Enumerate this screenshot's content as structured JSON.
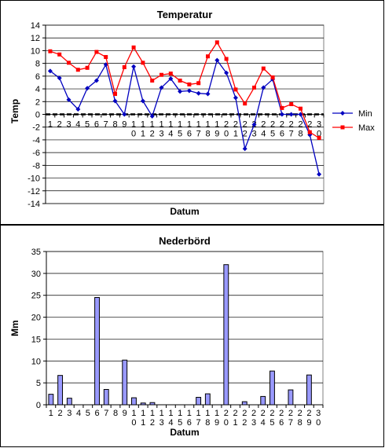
{
  "chart_data": [
    {
      "type": "line",
      "title": "Temperatur",
      "xlabel": "Datum",
      "ylabel": "Temp",
      "ylim": [
        -14,
        14
      ],
      "yticks": [
        14,
        12,
        10,
        8,
        6,
        4,
        2,
        0,
        -2,
        -4,
        -6,
        -8,
        -10,
        -12,
        -14
      ],
      "grid": true,
      "legend": "right",
      "categories": [
        "1",
        "2",
        "3",
        "4",
        "5",
        "6",
        "7",
        "8",
        "9",
        "10",
        "11",
        "12",
        "13",
        "14",
        "15",
        "16",
        "17",
        "18",
        "19",
        "20",
        "21",
        "22",
        "23",
        "24",
        "25",
        "26",
        "27",
        "28",
        "29",
        "30"
      ],
      "series": [
        {
          "name": "Min",
          "color": "#0000c0",
          "values": [
            6.8,
            5.7,
            2.3,
            0.8,
            4.1,
            5.3,
            7.8,
            2.1,
            0.0,
            7.5,
            2.1,
            -0.3,
            4.2,
            5.6,
            3.6,
            3.7,
            3.3,
            3.2,
            8.5,
            6.5,
            2.6,
            -5.4,
            -1.6,
            4.2,
            5.5,
            0.0,
            0.0,
            0.0,
            -3.2,
            -9.4
          ]
        },
        {
          "name": "Max",
          "color": "#ff0000",
          "values": [
            9.9,
            9.4,
            8.1,
            7.0,
            7.3,
            9.8,
            9.0,
            3.2,
            7.4,
            10.5,
            8.1,
            5.3,
            6.2,
            6.4,
            5.3,
            4.7,
            4.9,
            9.1,
            11.3,
            8.7,
            3.9,
            1.7,
            4.2,
            7.2,
            5.8,
            1.0,
            1.6,
            0.9,
            -2.8,
            -3.7
          ]
        }
      ]
    },
    {
      "type": "bar",
      "title": "Nederbörd",
      "xlabel": "Datum",
      "ylabel": "Mm",
      "ylim": [
        0,
        35
      ],
      "yticks": [
        35,
        30,
        25,
        20,
        15,
        10,
        5,
        0
      ],
      "grid": true,
      "bar_color": "#9999ff",
      "categories": [
        "1",
        "2",
        "3",
        "4",
        "5",
        "6",
        "7",
        "8",
        "9",
        "10",
        "11",
        "12",
        "13",
        "14",
        "15",
        "16",
        "17",
        "18",
        "19",
        "20",
        "21",
        "22",
        "23",
        "24",
        "25",
        "26",
        "27",
        "28",
        "29",
        "30"
      ],
      "values": [
        2.4,
        6.7,
        1.5,
        0,
        0,
        24.5,
        3.5,
        0,
        10.2,
        1.6,
        0.4,
        0.5,
        0,
        0,
        0,
        0,
        1.7,
        2.5,
        0,
        32.0,
        0,
        0.7,
        0,
        1.9,
        7.7,
        0,
        3.4,
        0,
        6.8,
        0
      ]
    }
  ]
}
